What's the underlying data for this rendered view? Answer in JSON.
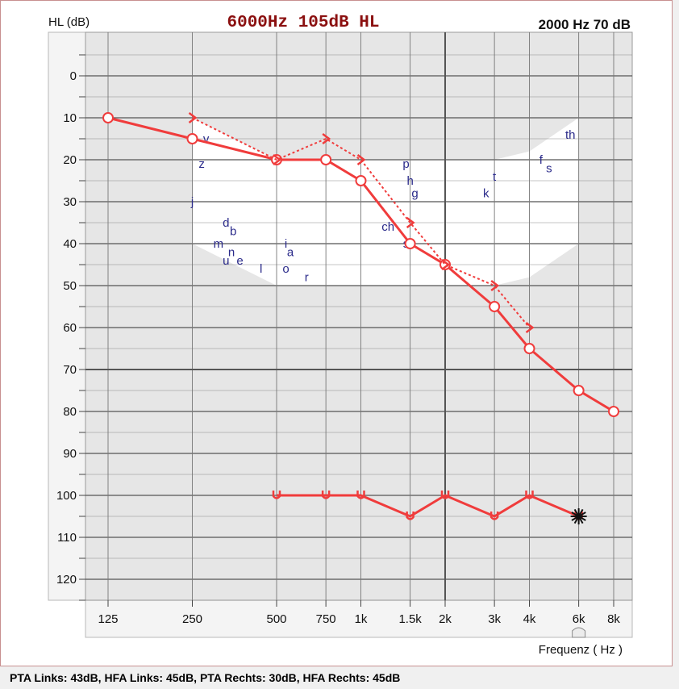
{
  "header": {
    "cursor_readout": "6000Hz 105dB HL",
    "hover_readout": "2000 Hz 70 dB",
    "y_axis_label": "HL (dB)",
    "x_axis_label": "Frequenz ( Hz )"
  },
  "footer": {
    "summary": "PTA Links: 43dB, HFA Links: 45dB, PTA Rechts: 30dB, HFA Rechts: 45dB"
  },
  "colors": {
    "curve": "#f03c3c",
    "phoneme_text": "#2a2a8a",
    "speech_banana": "#ffffff",
    "grid_background": "#e6e6e6",
    "readout_text": "#8b1010"
  },
  "chart_data": {
    "type": "line",
    "y_inverted": true,
    "ylim": [
      -10,
      125
    ],
    "y_ticks": [
      "0",
      "10",
      "20",
      "30",
      "40",
      "50",
      "60",
      "70",
      "80",
      "90",
      "100",
      "110",
      "120"
    ],
    "x_tick_labels": [
      "125",
      "250",
      "500",
      "750",
      "1k",
      "1.5k",
      "2k",
      "3k",
      "4k",
      "6k",
      "8k"
    ],
    "x_tick_freqs": [
      125,
      250,
      500,
      750,
      1000,
      1500,
      2000,
      3000,
      4000,
      6000,
      8000
    ],
    "crosshair": {
      "freq": 2000,
      "db": 70
    },
    "series": [
      {
        "name": "",
        "marker": "circle",
        "points": [
          [
            125,
            10
          ],
          [
            250,
            15
          ],
          [
            500,
            20
          ],
          [
            750,
            20
          ],
          [
            1000,
            25
          ],
          [
            1500,
            40
          ],
          [
            2000,
            45
          ],
          [
            3000,
            55
          ],
          [
            4000,
            65
          ],
          [
            6000,
            75
          ],
          [
            8000,
            80
          ]
        ]
      },
      {
        "name": "",
        "marker": "chevron",
        "dashed": true,
        "points": [
          [
            250,
            10
          ],
          [
            500,
            20
          ],
          [
            750,
            15
          ],
          [
            1000,
            20
          ],
          [
            1500,
            35
          ],
          [
            2000,
            45
          ],
          [
            3000,
            50
          ],
          [
            4000,
            60
          ]
        ]
      },
      {
        "name": "",
        "marker": "u",
        "points": [
          [
            500,
            100
          ],
          [
            750,
            100
          ],
          [
            1000,
            100
          ],
          [
            1500,
            105
          ],
          [
            2000,
            100
          ],
          [
            3000,
            105
          ],
          [
            4000,
            100
          ],
          [
            6000,
            105
          ]
        ]
      }
    ],
    "phonemes": [
      {
        "text": "v",
        "freq": 280,
        "db": 15
      },
      {
        "text": "z",
        "freq": 270,
        "db": 21
      },
      {
        "text": "j",
        "freq": 250,
        "db": 30
      },
      {
        "text": "d",
        "freq": 330,
        "db": 35
      },
      {
        "text": "b",
        "freq": 350,
        "db": 37
      },
      {
        "text": "m",
        "freq": 310,
        "db": 40
      },
      {
        "text": "n",
        "freq": 345,
        "db": 42
      },
      {
        "text": "u",
        "freq": 330,
        "db": 44
      },
      {
        "text": "e",
        "freq": 370,
        "db": 44
      },
      {
        "text": "l",
        "freq": 440,
        "db": 46
      },
      {
        "text": "i",
        "freq": 540,
        "db": 40
      },
      {
        "text": "a",
        "freq": 560,
        "db": 42
      },
      {
        "text": "o",
        "freq": 540,
        "db": 46
      },
      {
        "text": "r",
        "freq": 640,
        "db": 48
      },
      {
        "text": "p",
        "freq": 1450,
        "db": 21
      },
      {
        "text": "h",
        "freq": 1500,
        "db": 25
      },
      {
        "text": "g",
        "freq": 1560,
        "db": 28
      },
      {
        "text": "ch",
        "freq": 1250,
        "db": 36
      },
      {
        "text": "s",
        "freq": 1450,
        "db": 40
      },
      {
        "text": "k",
        "freq": 2800,
        "db": 28
      },
      {
        "text": "t",
        "freq": 3000,
        "db": 24
      },
      {
        "text": "f",
        "freq": 4400,
        "db": 20
      },
      {
        "text": "s",
        "freq": 4700,
        "db": 22
      },
      {
        "text": "th",
        "freq": 5600,
        "db": 14
      }
    ],
    "speech_banana": {
      "upper": [
        [
          250,
          10
        ],
        [
          500,
          20
        ],
        [
          1000,
          20
        ],
        [
          2000,
          20
        ],
        [
          3000,
          20
        ],
        [
          4000,
          18
        ],
        [
          6000,
          10
        ]
      ],
      "lower": [
        [
          6000,
          40
        ],
        [
          4000,
          48
        ],
        [
          3000,
          50
        ],
        [
          2000,
          50
        ],
        [
          1000,
          50
        ],
        [
          500,
          50
        ],
        [
          250,
          40
        ]
      ]
    }
  }
}
